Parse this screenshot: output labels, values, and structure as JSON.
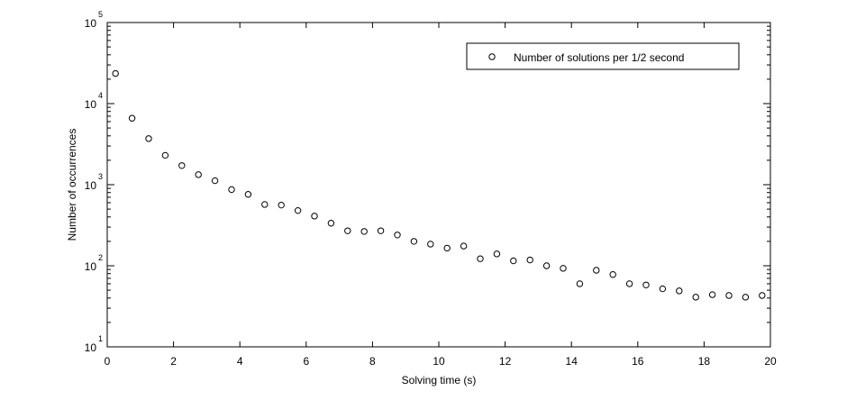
{
  "chart_data": {
    "type": "scatter",
    "title": "",
    "xlabel": "Solving time (s)",
    "ylabel": "Number of occurrences",
    "xlim": [
      0,
      20
    ],
    "ylim": [
      10,
      100000
    ],
    "yscale": "log",
    "grid": false,
    "legend_position": "top-right",
    "x_ticks": [
      "0",
      "2",
      "4",
      "6",
      "8",
      "10",
      "12",
      "14",
      "16",
      "18",
      "20"
    ],
    "y_ticks": [
      {
        "base": "10",
        "exp": "1"
      },
      {
        "base": "10",
        "exp": "2"
      },
      {
        "base": "10",
        "exp": "3"
      },
      {
        "base": "10",
        "exp": "4"
      },
      {
        "base": "10",
        "exp": "5"
      }
    ],
    "marker_color": "#000000",
    "series": [
      {
        "name": "Number of solutions per 1/2 second",
        "marker": "circle-open",
        "x": [
          0.25,
          0.75,
          1.25,
          1.75,
          2.25,
          2.75,
          3.25,
          3.75,
          4.25,
          4.75,
          5.25,
          5.75,
          6.25,
          6.75,
          7.25,
          7.75,
          8.25,
          8.75,
          9.25,
          9.75,
          10.25,
          10.75,
          11.25,
          11.75,
          12.25,
          12.75,
          13.25,
          13.75,
          14.25,
          14.75,
          15.25,
          15.75,
          16.25,
          16.75,
          17.25,
          17.75,
          18.25,
          18.75,
          19.25,
          19.75
        ],
        "y": [
          23500,
          6600,
          3700,
          2300,
          1720,
          1330,
          1120,
          870,
          760,
          570,
          560,
          480,
          410,
          335,
          270,
          265,
          270,
          240,
          200,
          185,
          165,
          175,
          122,
          140,
          115,
          118,
          100,
          93,
          60,
          88,
          78,
          60,
          58,
          52,
          49,
          41,
          44,
          43,
          41,
          43
        ]
      }
    ]
  }
}
